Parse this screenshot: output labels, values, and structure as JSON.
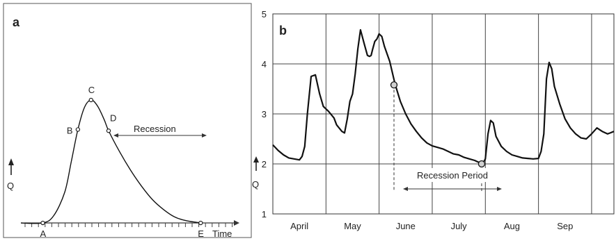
{
  "panel_a": {
    "panel_label": "a",
    "point_labels": [
      "A",
      "B",
      "C",
      "D",
      "E"
    ],
    "annotation": "Recession",
    "xlabel": "Time",
    "ylabel": "Q"
  },
  "panel_b": {
    "panel_label": "b",
    "annotation": "Recession Period",
    "ylabel": "Q"
  },
  "chart_data": [
    {
      "type": "line",
      "title": "",
      "xlabel": "Time",
      "ylabel": "Q",
      "grid": false,
      "points": [
        {
          "label": "A",
          "x": 1.0,
          "y": 0.0
        },
        {
          "label": "B",
          "x": 2.6,
          "y": 0.76
        },
        {
          "label": "C",
          "x": 3.2,
          "y": 1.0
        },
        {
          "label": "D",
          "x": 4.0,
          "y": 0.75
        },
        {
          "label": "E",
          "x": 8.2,
          "y": 0.0
        }
      ],
      "curve": {
        "x": [
          0.0,
          1.0,
          1.5,
          2.0,
          2.3,
          2.6,
          2.9,
          3.2,
          3.5,
          3.8,
          4.0,
          4.5,
          5.0,
          5.5,
          6.0,
          6.5,
          7.0,
          7.5,
          8.0,
          8.2
        ],
        "y": [
          0.0,
          0.0,
          0.06,
          0.25,
          0.5,
          0.76,
          0.94,
          1.0,
          0.95,
          0.84,
          0.75,
          0.58,
          0.43,
          0.3,
          0.19,
          0.11,
          0.05,
          0.02,
          0.005,
          0.0
        ]
      },
      "annotation": "Recession"
    },
    {
      "type": "line",
      "title": "",
      "xlabel": "",
      "ylabel": "Q",
      "ylim": [
        1,
        5
      ],
      "xlim": [
        0,
        6.42
      ],
      "yticks": [
        1,
        2,
        3,
        4,
        5
      ],
      "categories": [
        "April",
        "May",
        "June",
        "July",
        "Aug",
        "Sep"
      ],
      "grid": true,
      "series": [
        {
          "x": [
            0.0,
            0.1,
            0.2,
            0.3,
            0.4,
            0.5,
            0.55,
            0.6,
            0.65,
            0.72,
            0.8,
            0.88,
            0.95,
            1.05,
            1.15,
            1.2,
            1.3,
            1.35,
            1.4,
            1.45,
            1.5,
            1.55,
            1.6,
            1.65,
            1.72,
            1.78,
            1.82,
            1.85,
            1.88,
            1.92,
            1.96,
            2.0,
            2.05,
            2.1,
            2.2,
            2.3,
            2.4,
            2.5,
            2.6,
            2.7,
            2.8,
            2.9,
            3.0,
            3.1,
            3.2,
            3.3,
            3.4,
            3.5,
            3.6,
            3.7,
            3.8,
            3.9,
            3.95,
            4.0,
            4.05,
            4.1,
            4.15,
            4.2,
            4.3,
            4.4,
            4.5,
            4.6,
            4.7,
            4.8,
            4.9,
            5.0,
            5.05,
            5.1,
            5.15,
            5.2,
            5.25,
            5.3,
            5.4,
            5.5,
            5.6,
            5.7,
            5.8,
            5.9,
            6.0,
            6.1,
            6.2,
            6.3,
            6.35,
            6.42
          ],
          "y": [
            2.38,
            2.27,
            2.18,
            2.12,
            2.1,
            2.08,
            2.15,
            2.35,
            3.0,
            3.75,
            3.78,
            3.4,
            3.15,
            3.05,
            2.92,
            2.78,
            2.65,
            2.62,
            2.9,
            3.25,
            3.4,
            3.8,
            4.3,
            4.68,
            4.4,
            4.17,
            4.15,
            4.17,
            4.3,
            4.45,
            4.5,
            4.6,
            4.55,
            4.35,
            4.05,
            3.6,
            3.25,
            3.0,
            2.8,
            2.65,
            2.52,
            2.42,
            2.36,
            2.33,
            2.3,
            2.25,
            2.2,
            2.18,
            2.13,
            2.1,
            2.07,
            2.02,
            2.0,
            2.1,
            2.6,
            2.87,
            2.82,
            2.55,
            2.35,
            2.25,
            2.18,
            2.15,
            2.12,
            2.11,
            2.1,
            2.11,
            2.25,
            2.6,
            3.7,
            4.03,
            3.9,
            3.55,
            3.2,
            2.9,
            2.72,
            2.6,
            2.52,
            2.5,
            2.6,
            2.72,
            2.65,
            2.6,
            2.62,
            2.65
          ]
        }
      ],
      "markers": [
        {
          "x": 2.28,
          "y": 3.58
        },
        {
          "x": 3.93,
          "y": 2.0
        }
      ],
      "annotation": "Recession Period"
    }
  ]
}
